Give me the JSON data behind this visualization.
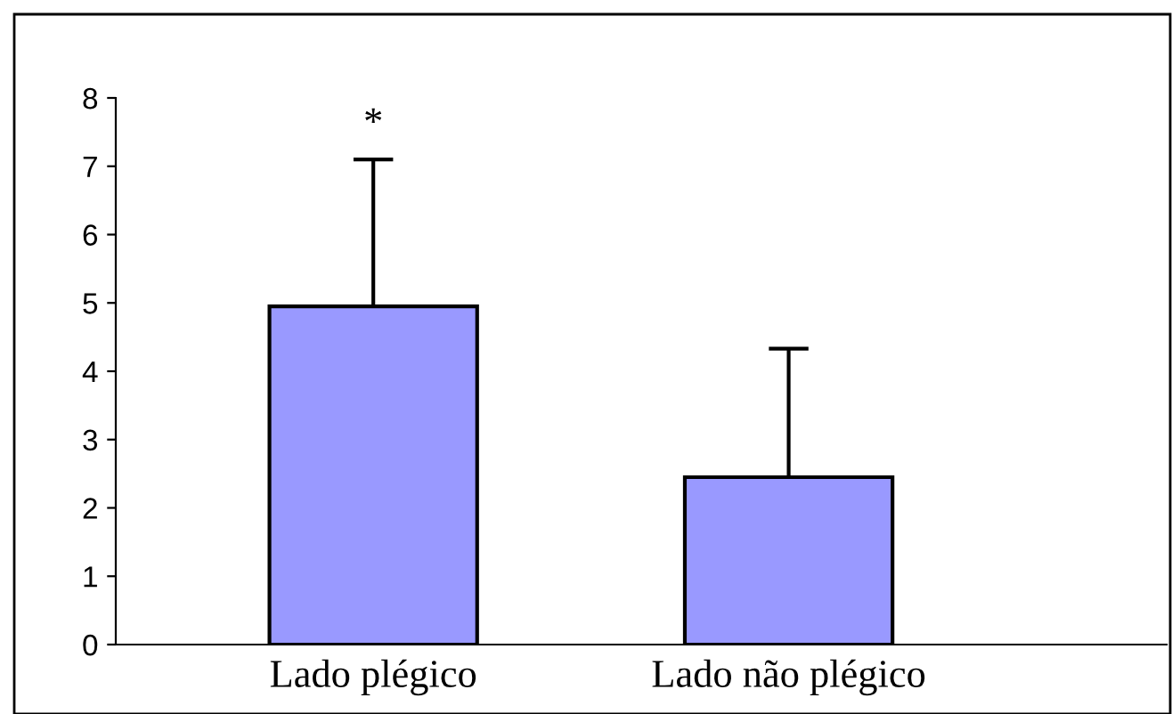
{
  "chart_data": {
    "type": "bar",
    "categories": [
      "Lado plégico",
      "Lado não plégico"
    ],
    "values": [
      4.95,
      2.45
    ],
    "errors": [
      2.15,
      1.88
    ],
    "color": "#9999ff",
    "ylim": [
      0,
      8
    ],
    "yticks": [
      0,
      1,
      2,
      3,
      4,
      5,
      6,
      7,
      8
    ],
    "grid": false,
    "annotations": [
      "*"
    ]
  }
}
